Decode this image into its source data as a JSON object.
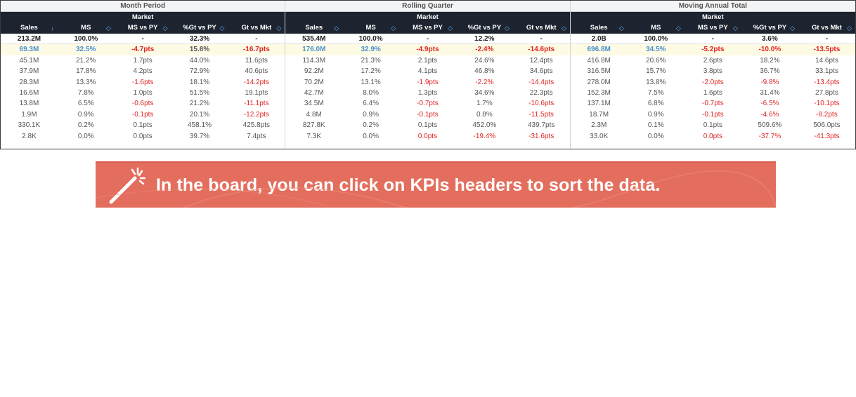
{
  "board": {
    "periods": [
      {
        "title": "Month Period",
        "market_label": "Market",
        "columns": [
          "Sales",
          "MS",
          "MS vs PY",
          "%Gt vs PY",
          "Gt vs Mkt"
        ],
        "sort_icons": [
          "↓",
          "◇",
          "◇",
          "◇",
          "◇"
        ],
        "rows": [
          [
            "213.2M",
            "100.0%",
            "-",
            "32.3%",
            "-"
          ],
          [
            "69.3M",
            "32.5%",
            "-4.7pts",
            "15.6%",
            "-16.7pts"
          ],
          [
            "45.1M",
            "21.2%",
            "1.7pts",
            "44.0%",
            "11.6pts"
          ],
          [
            "37.9M",
            "17.8%",
            "4.2pts",
            "72.9%",
            "40.6pts"
          ],
          [
            "28.3M",
            "13.3%",
            "-1.6pts",
            "18.1%",
            "-14.2pts"
          ],
          [
            "16.6M",
            "7.8%",
            "1.0pts",
            "51.5%",
            "19.1pts"
          ],
          [
            "13.8M",
            "6.5%",
            "-0.6pts",
            "21.2%",
            "-11.1pts"
          ],
          [
            "1.9M",
            "0.9%",
            "-0.1pts",
            "20.1%",
            "-12.2pts"
          ],
          [
            "330.1K",
            "0.2%",
            "0.1pts",
            "458.1%",
            "425.8pts"
          ],
          [
            "2.8K",
            "0.0%",
            "0.0pts",
            "39.7%",
            "7.4pts"
          ]
        ]
      },
      {
        "title": "Rolling Quarter",
        "market_label": "Market",
        "columns": [
          "Sales",
          "MS",
          "MS vs PY",
          "%Gt vs PY",
          "Gt vs Mkt"
        ],
        "sort_icons": [
          "◇",
          "◇",
          "◇",
          "◇",
          "◇"
        ],
        "rows": [
          [
            "535.4M",
            "100.0%",
            "-",
            "12.2%",
            "-"
          ],
          [
            "176.0M",
            "32.9%",
            "-4.9pts",
            "-2.4%",
            "-14.6pts"
          ],
          [
            "114.3M",
            "21.3%",
            "2.1pts",
            "24.6%",
            "12.4pts"
          ],
          [
            "92.2M",
            "17.2%",
            "4.1pts",
            "46.8%",
            "34.6pts"
          ],
          [
            "70.2M",
            "13.1%",
            "-1.9pts",
            "-2.2%",
            "-14.4pts"
          ],
          [
            "42.7M",
            "8.0%",
            "1.3pts",
            "34.6%",
            "22.3pts"
          ],
          [
            "34.5M",
            "6.4%",
            "-0.7pts",
            "1.7%",
            "-10.6pts"
          ],
          [
            "4.8M",
            "0.9%",
            "-0.1pts",
            "0.8%",
            "-11.5pts"
          ],
          [
            "827.8K",
            "0.2%",
            "0.1pts",
            "452.0%",
            "439.7pts"
          ],
          [
            "7.3K",
            "0.0%",
            "0.0pts",
            "-19.4%",
            "-31.6pts"
          ]
        ]
      },
      {
        "title": "Moving Annual Total",
        "market_label": "Market",
        "columns": [
          "Sales",
          "MS",
          "MS vs PY",
          "%Gt vs PY",
          "Gt vs Mkt"
        ],
        "sort_icons": [
          "◇",
          "◇",
          "◇",
          "◇",
          "◇"
        ],
        "rows": [
          [
            "2.0B",
            "100.0%",
            "-",
            "3.6%",
            "-"
          ],
          [
            "696.8M",
            "34.5%",
            "-5.2pts",
            "-10.0%",
            "-13.5pts"
          ],
          [
            "416.8M",
            "20.6%",
            "2.6pts",
            "18.2%",
            "14.6pts"
          ],
          [
            "316.5M",
            "15.7%",
            "3.8pts",
            "36.7%",
            "33.1pts"
          ],
          [
            "278.0M",
            "13.8%",
            "-2.0pts",
            "-9.8%",
            "-13.4pts"
          ],
          [
            "152.3M",
            "7.5%",
            "1.6pts",
            "31.4%",
            "27.8pts"
          ],
          [
            "137.1M",
            "6.8%",
            "-0.7pts",
            "-6.5%",
            "-10.1pts"
          ],
          [
            "18.7M",
            "0.9%",
            "-0.1pts",
            "-4.6%",
            "-8.2pts"
          ],
          [
            "2.3M",
            "0.1%",
            "0.1pts",
            "509.6%",
            "506.0pts"
          ],
          [
            "33.0K",
            "0.0%",
            "0.0pts",
            "-37.7%",
            "-41.3pts"
          ]
        ]
      }
    ],
    "colors": {
      "header_bg": "#1d2430",
      "negative": "#e02424",
      "highlight_row": "#fdfbe4",
      "highlight_text": "#4b8fd1",
      "sort_icon": "#66b3ff"
    }
  },
  "banner": {
    "icon": "magic-wand-icon",
    "text": "In the board, you can click on KPIs headers to sort the data.",
    "bg_color": "#e46e5e"
  }
}
